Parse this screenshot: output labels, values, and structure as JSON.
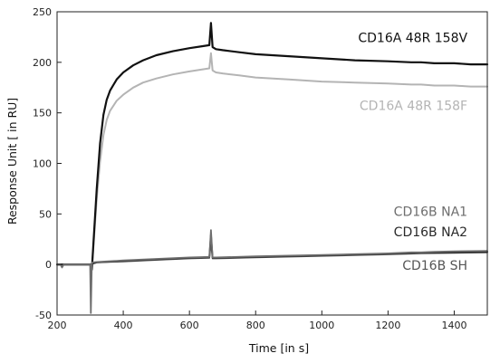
{
  "chart_data": {
    "type": "line",
    "title": "",
    "xlabel": "Time [in s]",
    "ylabel": "Response Unit [ in RU]",
    "xlim": [
      200,
      1500
    ],
    "ylim": [
      -50,
      250
    ],
    "x_ticks": [
      200,
      400,
      600,
      800,
      1000,
      1200,
      1400
    ],
    "y_ticks": [
      -50,
      0,
      50,
      100,
      150,
      200,
      250
    ],
    "grid": false,
    "legend": "none",
    "series": [
      {
        "name": "CD16A 48R 158V",
        "color": "#111111",
        "x": [
          200,
          300,
          305,
          310,
          320,
          330,
          340,
          350,
          360,
          380,
          400,
          430,
          460,
          500,
          550,
          600,
          640,
          660,
          665,
          670,
          680,
          700,
          750,
          800,
          900,
          1000,
          1100,
          1200,
          1270,
          1300,
          1340,
          1400,
          1450,
          1500
        ],
        "y": [
          0,
          0,
          -5,
          22,
          75,
          120,
          148,
          163,
          172,
          183,
          190,
          197,
          202,
          207,
          211,
          214,
          216,
          217,
          239,
          215,
          213,
          212,
          210,
          208,
          206,
          204,
          202,
          201,
          200,
          200,
          199,
          199,
          198,
          198
        ]
      },
      {
        "name": "CD16A 48R 158F",
        "color": "#b4b4b4",
        "x": [
          200,
          300,
          305,
          310,
          320,
          330,
          340,
          350,
          360,
          380,
          400,
          430,
          460,
          500,
          550,
          600,
          640,
          660,
          665,
          670,
          680,
          700,
          750,
          800,
          900,
          1000,
          1100,
          1200,
          1270,
          1300,
          1340,
          1400,
          1450,
          1500
        ],
        "y": [
          0,
          0,
          -5,
          18,
          65,
          102,
          128,
          143,
          152,
          162,
          168,
          175,
          180,
          184,
          188,
          191,
          193,
          194,
          209,
          192,
          190,
          189,
          187,
          185,
          183,
          181,
          180,
          179,
          178,
          178,
          177,
          177,
          176,
          176
        ]
      },
      {
        "name": "CD16B NA1",
        "color": "#6e6e6e",
        "x": [
          200,
          210,
          215,
          220,
          300,
          302,
          305,
          308,
          320,
          400,
          500,
          600,
          660,
          665,
          670,
          680,
          800,
          1000,
          1200,
          1270,
          1300,
          1340,
          1400,
          1500
        ],
        "y": [
          0,
          0,
          -3,
          0,
          0,
          -48,
          2,
          2,
          2.5,
          4,
          5.5,
          7,
          7.5,
          34,
          7,
          7,
          8,
          9.5,
          11,
          12,
          12,
          12.5,
          13,
          13.5
        ]
      },
      {
        "name": "CD16B NA2",
        "color": "#2a2a2a",
        "x": [
          200,
          300,
          320,
          400,
          500,
          600,
          660,
          665,
          670,
          680,
          800,
          1000,
          1200,
          1300,
          1400,
          1500
        ],
        "y": [
          0,
          0,
          2,
          3.5,
          5,
          6.5,
          7,
          30,
          6.5,
          6.5,
          7.5,
          9,
          10.5,
          11.5,
          12,
          12.5
        ]
      },
      {
        "name": "CD16B SH",
        "color": "#555555",
        "x": [
          200,
          300,
          320,
          400,
          500,
          600,
          660,
          665,
          670,
          680,
          800,
          1000,
          1200,
          1300,
          1400,
          1500
        ],
        "y": [
          0,
          0,
          2,
          3,
          4.5,
          6,
          6.5,
          22,
          6,
          6,
          7,
          8.5,
          10,
          11,
          11.5,
          12
        ]
      }
    ],
    "annotations": [
      {
        "text": "CD16A 48R 158V",
        "x": 1440,
        "y": 220,
        "color": "#111111"
      },
      {
        "text": "CD16A 48R 158F",
        "x": 1440,
        "y": 153,
        "color": "#b4b4b4"
      },
      {
        "text": "CD16B NA1",
        "x": 1440,
        "y": 48,
        "color": "#6e6e6e"
      },
      {
        "text": "CD16B NA2",
        "x": 1440,
        "y": 28,
        "color": "#2a2a2a"
      },
      {
        "text": "CD16B SH",
        "x": 1440,
        "y": -5,
        "color": "#555555"
      }
    ]
  }
}
